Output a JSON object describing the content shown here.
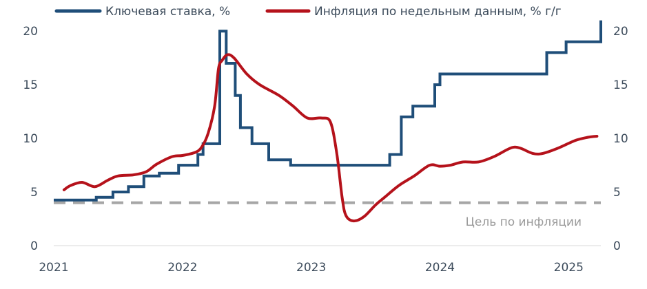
{
  "chart_data": {
    "type": "line",
    "title": "",
    "xlabel": "",
    "ylabel": "",
    "xlim": [
      2021.0,
      2025.25
    ],
    "ylim": [
      0,
      22
    ],
    "x_ticks": [
      "2021",
      "2022",
      "2023",
      "2024",
      "2025"
    ],
    "y_ticks_left": [
      "0",
      "5",
      "10",
      "15",
      "20"
    ],
    "y_ticks_right": [
      "0",
      "5",
      "10",
      "15",
      "20"
    ],
    "grid": false,
    "legend_position": "top",
    "annotation": "Цель по инфляции",
    "target_value": 4,
    "series": [
      {
        "name": "Ключевая ставка, %",
        "color": "#1f4e79",
        "step": true,
        "x": [
          2021.0,
          2021.22,
          2021.33,
          2021.46,
          2021.58,
          2021.7,
          2021.82,
          2021.97,
          2022.12,
          2022.16,
          2022.29,
          2022.34,
          2022.41,
          2022.45,
          2022.54,
          2022.67,
          2022.84,
          2023.57,
          2023.61,
          2023.7,
          2023.79,
          2023.96,
          2024.0,
          2024.57,
          2024.83,
          2024.98,
          2025.25
        ],
        "values": [
          4.25,
          4.25,
          4.5,
          5.0,
          5.5,
          6.5,
          6.75,
          7.5,
          8.5,
          9.5,
          20.0,
          17.0,
          14.0,
          11.0,
          9.5,
          8.0,
          7.5,
          7.5,
          8.5,
          12.0,
          13.0,
          15.0,
          16.0,
          16.0,
          18.0,
          19.0,
          21.0
        ]
      },
      {
        "name": "Инфляция по недельным данным, % г/г",
        "color": "#b5121b",
        "step": false,
        "x": [
          2021.08,
          2021.13,
          2021.22,
          2021.32,
          2021.42,
          2021.5,
          2021.62,
          2021.72,
          2021.8,
          2021.92,
          2022.0,
          2022.1,
          2022.15,
          2022.2,
          2022.25,
          2022.28,
          2022.31,
          2022.35,
          2022.4,
          2022.5,
          2022.6,
          2022.75,
          2022.86,
          2022.97,
          2023.08,
          2023.15,
          2023.2,
          2023.24,
          2023.27,
          2023.33,
          2023.41,
          2023.5,
          2023.57,
          2023.68,
          2023.8,
          2023.92,
          2024.0,
          2024.08,
          2024.18,
          2024.3,
          2024.42,
          2024.55,
          2024.62,
          2024.72,
          2024.8,
          2024.92,
          2025.05,
          2025.15,
          2025.22
        ],
        "values": [
          5.2,
          5.6,
          5.9,
          5.5,
          6.1,
          6.5,
          6.6,
          6.9,
          7.6,
          8.3,
          8.4,
          8.7,
          9.2,
          10.5,
          13.0,
          16.5,
          17.3,
          17.8,
          17.5,
          16.0,
          15.0,
          14.0,
          13.0,
          11.9,
          11.9,
          11.5,
          8.5,
          4.5,
          2.8,
          2.3,
          2.7,
          3.8,
          4.5,
          5.6,
          6.5,
          7.5,
          7.4,
          7.5,
          7.8,
          7.8,
          8.3,
          9.1,
          9.1,
          8.6,
          8.6,
          9.1,
          9.8,
          10.1,
          10.2
        ]
      }
    ]
  }
}
